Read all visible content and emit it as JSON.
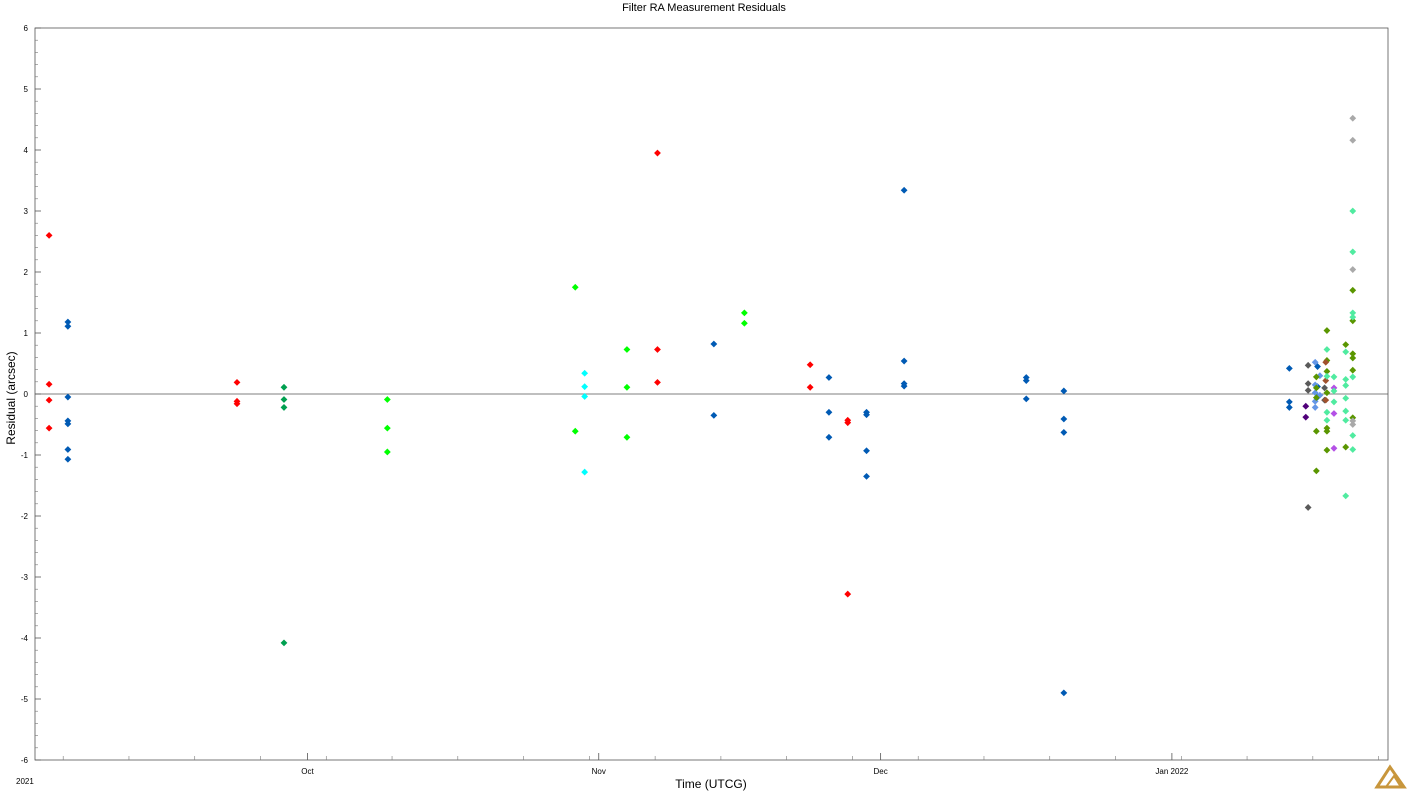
{
  "chart_data": {
    "type": "scatter",
    "title": "Filter RA Measurement Residuals",
    "xlabel": "Time (UTCG)",
    "ylabel": "Residual (arcsec)",
    "ylim": [
      -6,
      6
    ],
    "xlim": [
      "2021-09-02",
      "2022-01-24"
    ],
    "start_label": "2021",
    "x_tick_labels": [
      {
        "date": "2021-10-01",
        "label": "Oct"
      },
      {
        "date": "2021-11-01",
        "label": "Nov"
      },
      {
        "date": "2021-12-01",
        "label": "Dec"
      },
      {
        "date": "2022-01-01",
        "label": "Jan 2022"
      }
    ],
    "y_ticks": [
      -6,
      -5,
      -4,
      -3,
      -2,
      -1,
      0,
      1,
      2,
      3,
      4,
      5,
      6
    ],
    "grid": false,
    "zero_line": true,
    "legend": "none",
    "series": [
      {
        "color": "#ff0000",
        "points": [
          [
            "2021-09-03T12:00",
            2.6
          ],
          [
            "2021-09-03T12:00",
            0.16
          ],
          [
            "2021-09-03T12:00",
            -0.1
          ],
          [
            "2021-09-03T12:00",
            -0.56
          ],
          [
            "2021-09-23T12:00",
            0.19
          ],
          [
            "2021-09-23T12:00",
            -0.12
          ],
          [
            "2021-09-23T12:00",
            -0.16
          ],
          [
            "2021-11-07T06:00",
            3.95
          ],
          [
            "2021-11-07T06:00",
            0.73
          ],
          [
            "2021-11-07T06:00",
            0.19
          ],
          [
            "2021-11-23T12:00",
            0.48
          ],
          [
            "2021-11-23T12:00",
            0.11
          ],
          [
            "2021-11-27T12:00",
            -0.43
          ],
          [
            "2021-11-27T12:00",
            -0.47
          ],
          [
            "2021-11-27T12:00",
            -3.28
          ]
        ]
      },
      {
        "color": "#005ab4",
        "points": [
          [
            "2021-09-05T12:00",
            1.18
          ],
          [
            "2021-09-05T12:00",
            1.11
          ],
          [
            "2021-09-05T12:00",
            -0.05
          ],
          [
            "2021-09-05T12:00",
            -0.44
          ],
          [
            "2021-09-05T12:00",
            -0.49
          ],
          [
            "2021-09-05T12:00",
            -0.91
          ],
          [
            "2021-09-05T12:00",
            -1.07
          ],
          [
            "2021-11-13T06:00",
            0.82
          ],
          [
            "2021-11-13T06:00",
            -0.35
          ],
          [
            "2021-11-25T12:00",
            0.27
          ],
          [
            "2021-11-25T12:00",
            -0.3
          ],
          [
            "2021-11-25T12:00",
            -0.71
          ],
          [
            "2021-11-29T12:00",
            -0.3
          ],
          [
            "2021-11-29T12:00",
            -0.34
          ],
          [
            "2021-11-29T12:00",
            -0.93
          ],
          [
            "2021-11-29T12:00",
            -1.35
          ],
          [
            "2021-12-03T12:00",
            3.34
          ],
          [
            "2021-12-03T12:00",
            0.54
          ],
          [
            "2021-12-03T12:00",
            0.17
          ],
          [
            "2021-12-03T12:00",
            0.13
          ],
          [
            "2021-12-16T12:00",
            0.27
          ],
          [
            "2021-12-16T12:00",
            0.22
          ],
          [
            "2021-12-16T12:00",
            -0.08
          ],
          [
            "2021-12-20T12:00",
            0.05
          ],
          [
            "2021-12-20T12:00",
            -0.41
          ],
          [
            "2021-12-20T12:00",
            -0.63
          ],
          [
            "2021-12-20T12:00",
            -4.9
          ],
          [
            "2022-01-13T12:00",
            0.42
          ],
          [
            "2022-01-13T12:00",
            -0.13
          ],
          [
            "2022-01-13T12:00",
            -0.22
          ],
          [
            "2022-01-16T12:00",
            0.45
          ],
          [
            "2022-01-16T12:00",
            0.12
          ],
          [
            "2022-01-16T12:00",
            -0.05
          ]
        ]
      },
      {
        "color": "#00a050",
        "points": [
          [
            "2021-09-28T12:00",
            0.11
          ],
          [
            "2021-09-28T12:00",
            -0.09
          ],
          [
            "2021-09-28T12:00",
            -0.22
          ],
          [
            "2021-09-28T12:00",
            -4.08
          ]
        ]
      },
      {
        "color": "#00ff00",
        "points": [
          [
            "2021-10-09T12:00",
            -0.09
          ],
          [
            "2021-10-09T12:00",
            -0.56
          ],
          [
            "2021-10-09T12:00",
            -0.95
          ],
          [
            "2021-10-29T12:00",
            1.75
          ],
          [
            "2021-10-29T12:00",
            -0.61
          ],
          [
            "2021-11-04T00:00",
            0.73
          ],
          [
            "2021-11-04T00:00",
            0.11
          ],
          [
            "2021-11-04T00:00",
            -0.71
          ],
          [
            "2021-11-16T12:00",
            1.33
          ],
          [
            "2021-11-16T12:00",
            1.16
          ]
        ]
      },
      {
        "color": "#00ffff",
        "points": [
          [
            "2021-10-30T12:00",
            0.34
          ],
          [
            "2021-10-30T12:00",
            0.12
          ],
          [
            "2021-10-30T12:00",
            -0.04
          ],
          [
            "2021-10-30T12:00",
            -1.28
          ]
        ]
      },
      {
        "color": "#5a5a5a",
        "points": [
          [
            "2022-01-15T12:00",
            0.47
          ],
          [
            "2022-01-15T12:00",
            0.17
          ],
          [
            "2022-01-15T12:00",
            0.06
          ],
          [
            "2022-01-15T12:00",
            -1.86
          ],
          [
            "2022-01-17T06:00",
            0.1
          ],
          [
            "2022-01-17T06:00",
            -0.1
          ]
        ]
      },
      {
        "color": "#50007a",
        "points": [
          [
            "2022-01-15T06:00",
            -0.2
          ],
          [
            "2022-01-15T06:00",
            -0.38
          ]
        ]
      },
      {
        "color": "#6496e6",
        "points": [
          [
            "2022-01-16T06:00",
            0.52
          ],
          [
            "2022-01-16T06:00",
            0.15
          ],
          [
            "2022-01-16T06:00",
            0.02
          ],
          [
            "2022-01-16T06:00",
            -0.12
          ],
          [
            "2022-01-16T06:00",
            -0.22
          ],
          [
            "2022-01-16T18:00",
            0.3
          ],
          [
            "2022-01-16T18:00",
            -0.02
          ]
        ]
      },
      {
        "color": "#5a9600",
        "points": [
          [
            "2022-01-16T09:00",
            0.28
          ],
          [
            "2022-01-16T09:00",
            0.1
          ],
          [
            "2022-01-16T09:00",
            -0.06
          ],
          [
            "2022-01-16T09:00",
            -0.61
          ],
          [
            "2022-01-16T09:00",
            -1.26
          ],
          [
            "2022-01-17T12:00",
            1.04
          ],
          [
            "2022-01-17T12:00",
            0.55
          ],
          [
            "2022-01-17T12:00",
            0.37
          ],
          [
            "2022-01-17T12:00",
            0.02
          ],
          [
            "2022-01-17T12:00",
            -0.56
          ],
          [
            "2022-01-17T12:00",
            -0.61
          ],
          [
            "2022-01-17T12:00",
            -0.92
          ],
          [
            "2022-01-19T12:00",
            0.81
          ],
          [
            "2022-01-19T12:00",
            -0.87
          ],
          [
            "2022-01-20T06:00",
            1.7
          ],
          [
            "2022-01-20T06:00",
            1.2
          ],
          [
            "2022-01-20T06:00",
            0.66
          ],
          [
            "2022-01-20T06:00",
            0.59
          ],
          [
            "2022-01-20T06:00",
            0.39
          ],
          [
            "2022-01-20T06:00",
            -0.39
          ]
        ]
      },
      {
        "color": "#a0522d",
        "points": [
          [
            "2022-01-17T09:00",
            0.52
          ],
          [
            "2022-01-17T09:00",
            0.22
          ],
          [
            "2022-01-17T09:00",
            -0.1
          ]
        ]
      },
      {
        "color": "#b450e6",
        "points": [
          [
            "2022-01-18T06:00",
            0.1
          ],
          [
            "2022-01-18T06:00",
            -0.32
          ],
          [
            "2022-01-18T06:00",
            -0.89
          ]
        ]
      },
      {
        "color": "#50eba0",
        "points": [
          [
            "2022-01-17T12:00",
            0.73
          ],
          [
            "2022-01-17T12:00",
            0.29
          ],
          [
            "2022-01-17T12:00",
            -0.3
          ],
          [
            "2022-01-17T12:00",
            -0.43
          ],
          [
            "2022-01-18T06:00",
            0.28
          ],
          [
            "2022-01-18T06:00",
            0.05
          ],
          [
            "2022-01-18T06:00",
            -0.13
          ],
          [
            "2022-01-19T12:00",
            0.69
          ],
          [
            "2022-01-19T12:00",
            0.24
          ],
          [
            "2022-01-19T12:00",
            0.14
          ],
          [
            "2022-01-19T12:00",
            -0.07
          ],
          [
            "2022-01-19T12:00",
            -0.28
          ],
          [
            "2022-01-19T12:00",
            -0.43
          ],
          [
            "2022-01-19T12:00",
            -1.67
          ],
          [
            "2022-01-20T06:00",
            3.0
          ],
          [
            "2022-01-20T06:00",
            2.33
          ],
          [
            "2022-01-20T06:00",
            1.33
          ],
          [
            "2022-01-20T06:00",
            1.26
          ],
          [
            "2022-01-20T06:00",
            0.28
          ],
          [
            "2022-01-20T06:00",
            -0.68
          ],
          [
            "2022-01-20T06:00",
            -0.91
          ]
        ]
      },
      {
        "color": "#a9a9a9",
        "points": [
          [
            "2022-01-20T06:00",
            4.52
          ],
          [
            "2022-01-20T06:00",
            4.16
          ],
          [
            "2022-01-20T06:00",
            2.04
          ],
          [
            "2022-01-20T06:00",
            -0.44
          ],
          [
            "2022-01-20T06:00",
            -0.5
          ]
        ]
      }
    ]
  }
}
